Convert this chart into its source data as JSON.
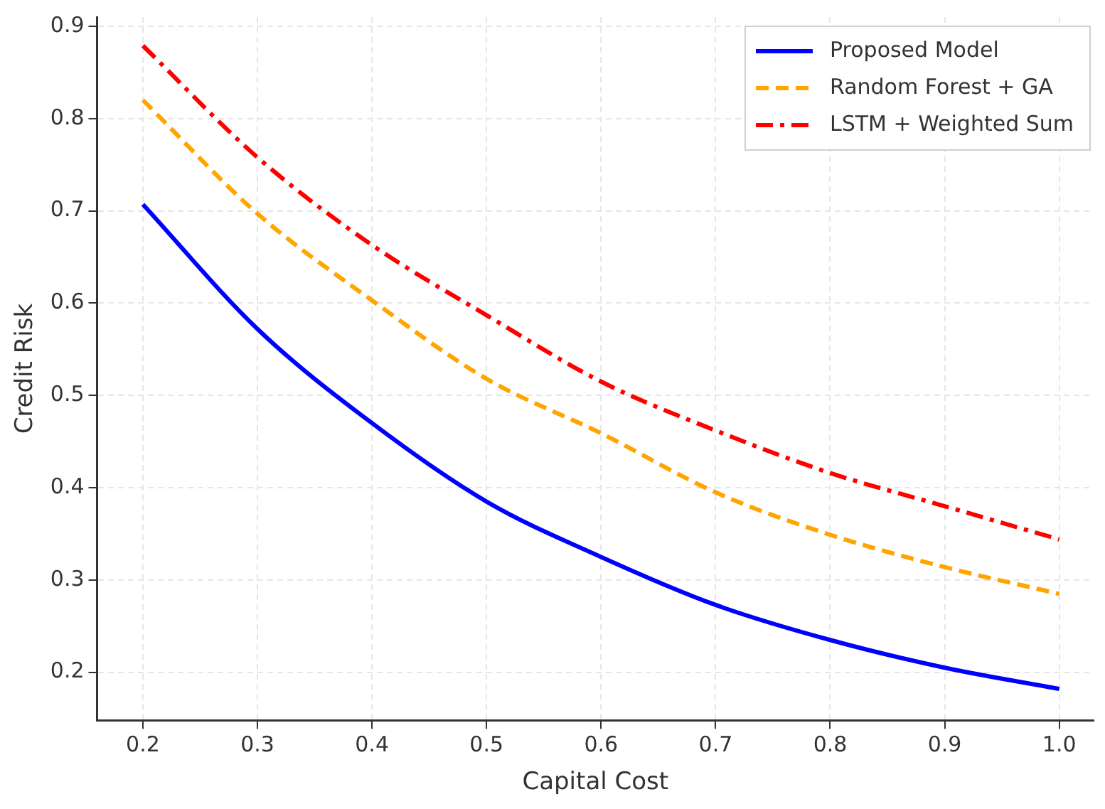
{
  "chart_data": {
    "type": "line",
    "xlabel": "Capital Cost",
    "ylabel": "Credit Risk",
    "x": [
      0.2,
      0.3,
      0.4,
      0.5,
      0.6,
      0.7,
      0.8,
      0.9,
      1.0
    ],
    "series": [
      {
        "name": "Proposed Model",
        "color": "#0000ff",
        "line_style": "solid",
        "values": [
          0.707,
          0.572,
          0.47,
          0.385,
          0.325,
          0.273,
          0.235,
          0.205,
          0.182
        ]
      },
      {
        "name": "Random Forest + GA",
        "color": "#ffa500",
        "line_style": "dashed",
        "values": [
          0.82,
          0.697,
          0.603,
          0.518,
          0.459,
          0.395,
          0.349,
          0.314,
          0.285
        ]
      },
      {
        "name": "LSTM + Weighted Sum",
        "color": "#ff0000",
        "line_style": "dashdot",
        "values": [
          0.879,
          0.758,
          0.663,
          0.587,
          0.515,
          0.462,
          0.416,
          0.38,
          0.344
        ]
      }
    ],
    "xlim": [
      0.16,
      1.03
    ],
    "ylim": [
      0.148,
      0.91
    ],
    "xticks": [
      0.2,
      0.3,
      0.4,
      0.5,
      0.6,
      0.7,
      0.8,
      0.9,
      {
        "value": 1,
        "label": "1.0"
      }
    ],
    "yticks": [
      0.2,
      0.3,
      0.4,
      0.5,
      0.6,
      0.7,
      0.8,
      0.9
    ],
    "grid": true,
    "legend": "top right",
    "marker": "none"
  }
}
